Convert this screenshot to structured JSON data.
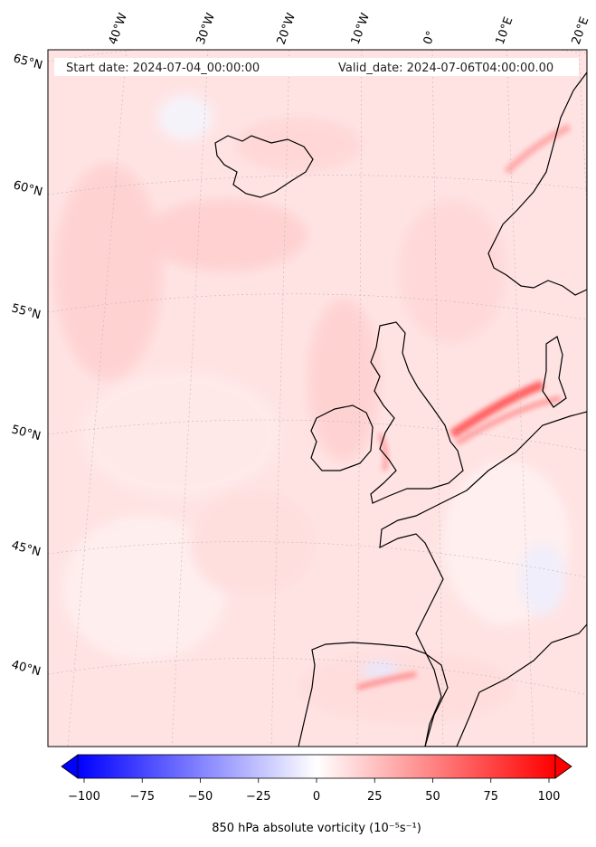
{
  "map": {
    "start_date": "Start date: 2024-07-04_00:00:00",
    "valid_date": "Valid_date: 2024-07-06T04:00:00.00",
    "lon_labels": [
      "40°W",
      "30°W",
      "20°W",
      "10°W",
      "0°",
      "10°E",
      "20°E"
    ],
    "lat_labels": [
      "65°N",
      "60°N",
      "55°N",
      "50°N",
      "45°N",
      "40°N"
    ],
    "field": "850 hPa absolute vorticity",
    "features": [
      "Iceland",
      "Ireland",
      "Great Britain",
      "Norway",
      "Denmark",
      "France",
      "Iberian Peninsula"
    ]
  },
  "colorbar": {
    "label": "850 hPa absolute vorticity (10⁻⁵s⁻¹)",
    "min": -100,
    "max": 100,
    "ticks": [
      "−100",
      "−75",
      "−50",
      "−25",
      "0",
      "25",
      "50",
      "75",
      "100"
    ],
    "colors": {
      "low": "#0000ff",
      "mid": "#ffffff",
      "high": "#ff0000"
    },
    "extend": "both"
  }
}
